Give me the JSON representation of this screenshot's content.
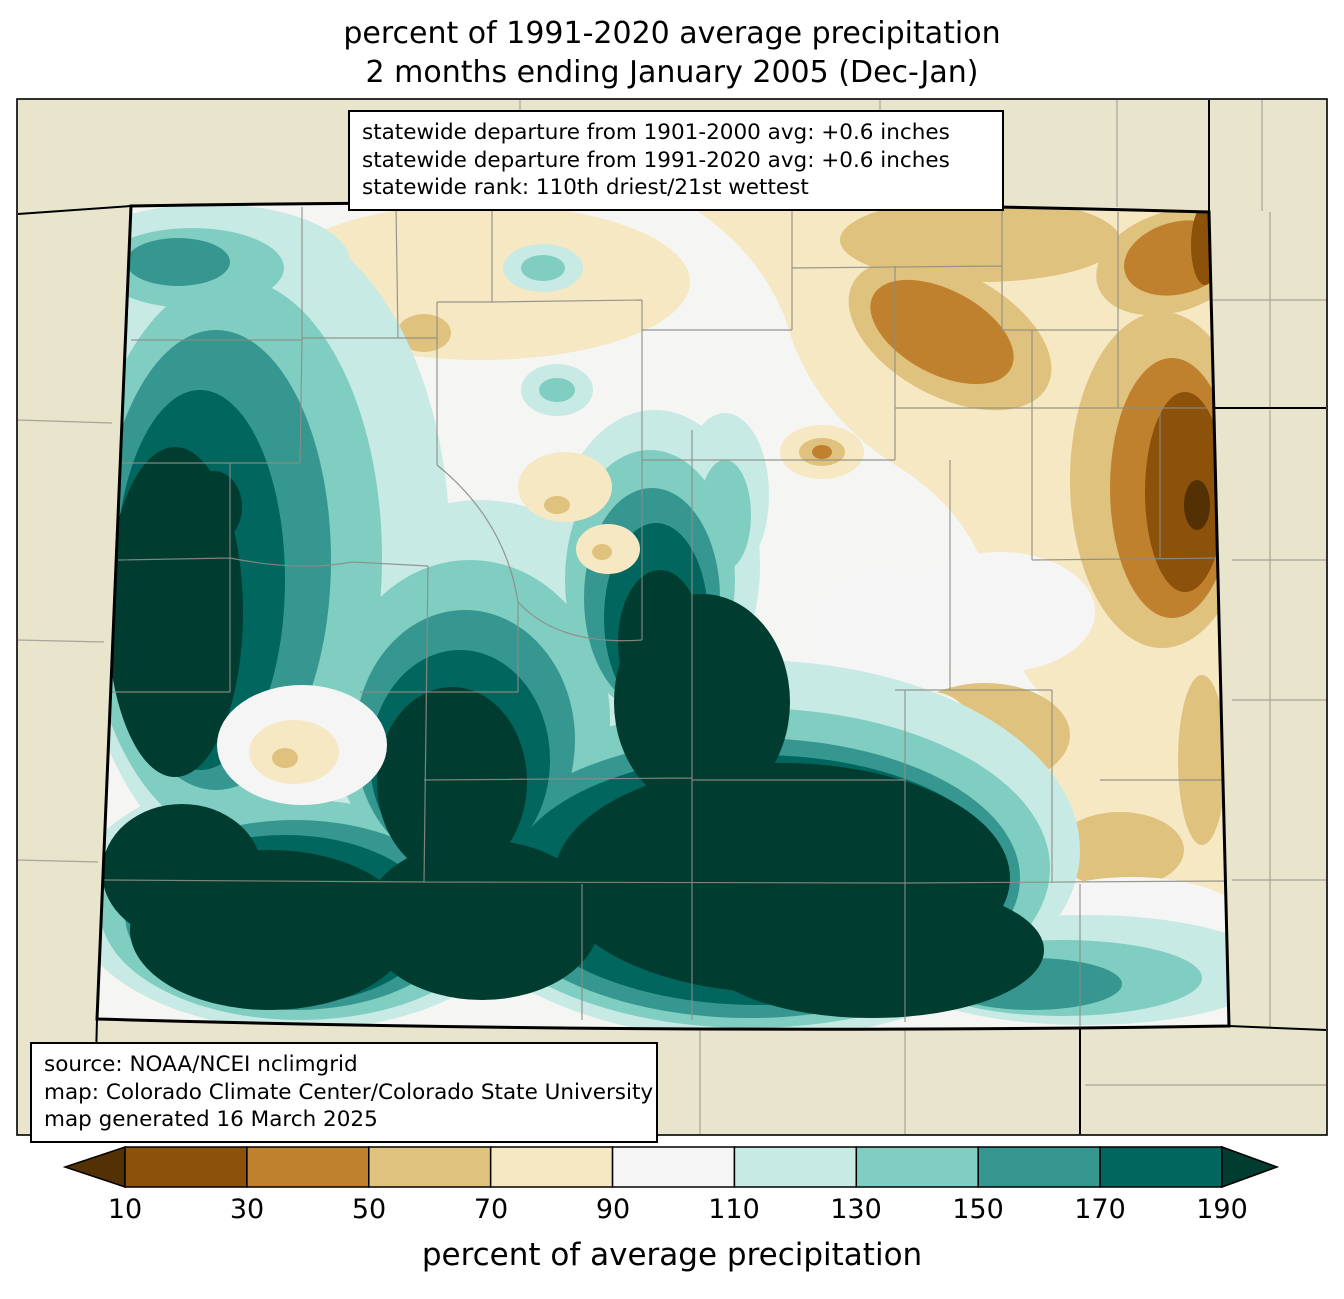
{
  "title": {
    "line1": "percent of 1991-2020 average precipitation",
    "line2": "2 months ending January 2005 (Dec-Jan)"
  },
  "stats_box": {
    "lines": [
      "statewide departure from 1901-2000 avg: +0.6 inches",
      "statewide departure from 1991-2020 avg: +0.6 inches",
      "statewide rank: 110th driest/21st wettest"
    ]
  },
  "source_box": {
    "lines": [
      "source: NOAA/NCEI nclimgrid",
      "map: Colorado Climate Center/Colorado State University",
      "map generated 16 March 2025"
    ]
  },
  "colorbar": {
    "label": "percent of average precipitation",
    "ticks": [
      "10",
      "30",
      "50",
      "70",
      "90",
      "110",
      "130",
      "150",
      "170",
      "190"
    ],
    "colors": [
      "#543005",
      "#8c510a",
      "#bf812d",
      "#dfc27d",
      "#f6e8c3",
      "#f5f5f5",
      "#c7eae5",
      "#80cdc1",
      "#35978f",
      "#01665e",
      "#003c30"
    ]
  },
  "palette": {
    "outside": "#e9e4cc",
    "base": "#f5f5f3",
    "white": "#f5f5f5",
    "cream": "#f6e8c3",
    "tan": "#dfc27d",
    "brown": "#bf812d",
    "dark_brown": "#8c510a",
    "darkest_brown": "#543005",
    "teal_light": "#c7eae5",
    "teal_mlight": "#80cdc1",
    "teal": "#35978f",
    "teal_dark": "#01665e",
    "teal_darkest": "#003c30"
  }
}
